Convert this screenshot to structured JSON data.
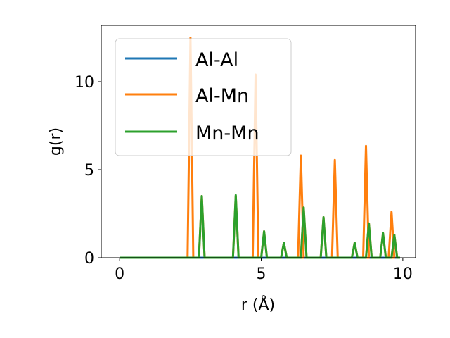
{
  "chart_data": {
    "type": "line",
    "xlabel": "r (Å)",
    "ylabel": "g(r)",
    "xlim": [
      -0.65,
      10.45
    ],
    "ylim": [
      0,
      13.2
    ],
    "xticks": [
      0,
      5,
      10
    ],
    "yticks": [
      0,
      5,
      10
    ],
    "grid": false,
    "legend": "top-left",
    "peak_halfwidth": 0.1,
    "series": [
      {
        "name": "Al-Al",
        "color": "#1f77b4",
        "peaks": []
      },
      {
        "name": "Al-Mn",
        "color": "#ff7f0e",
        "peaks": [
          [
            2.5,
            12.5
          ],
          [
            2.9,
            3.5
          ],
          [
            4.1,
            3.5
          ],
          [
            4.8,
            10.4
          ],
          [
            5.1,
            1.5
          ],
          [
            5.8,
            0.85
          ],
          [
            6.4,
            5.8
          ],
          [
            6.5,
            2.85
          ],
          [
            7.2,
            2.3
          ],
          [
            7.6,
            5.55
          ],
          [
            8.3,
            0.85
          ],
          [
            8.7,
            6.35
          ],
          [
            8.8,
            1.95
          ],
          [
            9.3,
            1.4
          ],
          [
            9.6,
            2.6
          ],
          [
            9.7,
            1.3
          ]
        ]
      },
      {
        "name": "Mn-Mn",
        "color": "#2ca02c",
        "peaks": [
          [
            2.9,
            3.5
          ],
          [
            4.1,
            3.55
          ],
          [
            5.1,
            1.5
          ],
          [
            5.8,
            0.85
          ],
          [
            6.5,
            2.85
          ],
          [
            7.2,
            2.3
          ],
          [
            8.3,
            0.85
          ],
          [
            8.8,
            1.95
          ],
          [
            9.3,
            1.4
          ],
          [
            9.7,
            1.3
          ]
        ]
      }
    ]
  }
}
